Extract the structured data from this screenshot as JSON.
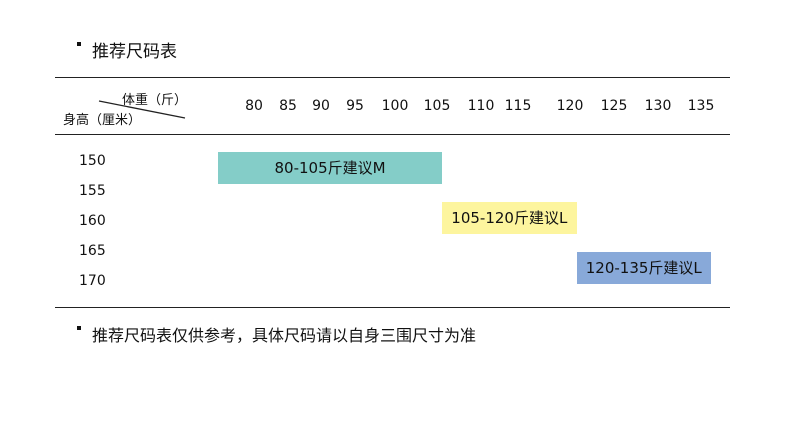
{
  "title": "推荐尺码表",
  "header": {
    "weight_label": "体重（斤）",
    "height_label": "身高（厘米）"
  },
  "weights": [
    "80",
    "85",
    "90",
    "95",
    "100",
    "105",
    "110",
    "115",
    "120",
    "125",
    "130",
    "135"
  ],
  "heights": [
    "150",
    "155",
    "160",
    "165",
    "170"
  ],
  "bars": [
    {
      "label": "80-105斤建议M",
      "from": 80,
      "to": 105,
      "color": "#84cdc8"
    },
    {
      "label": "105-120斤建议L",
      "from": 105,
      "to": 120,
      "color": "#fdf59e"
    },
    {
      "label": "120-135斤建议L",
      "from": 120,
      "to": 135,
      "color": "#88a9d9"
    }
  ],
  "note": "推荐尺码表仅供参考，具体尺码请以自身三围尺寸为准"
}
